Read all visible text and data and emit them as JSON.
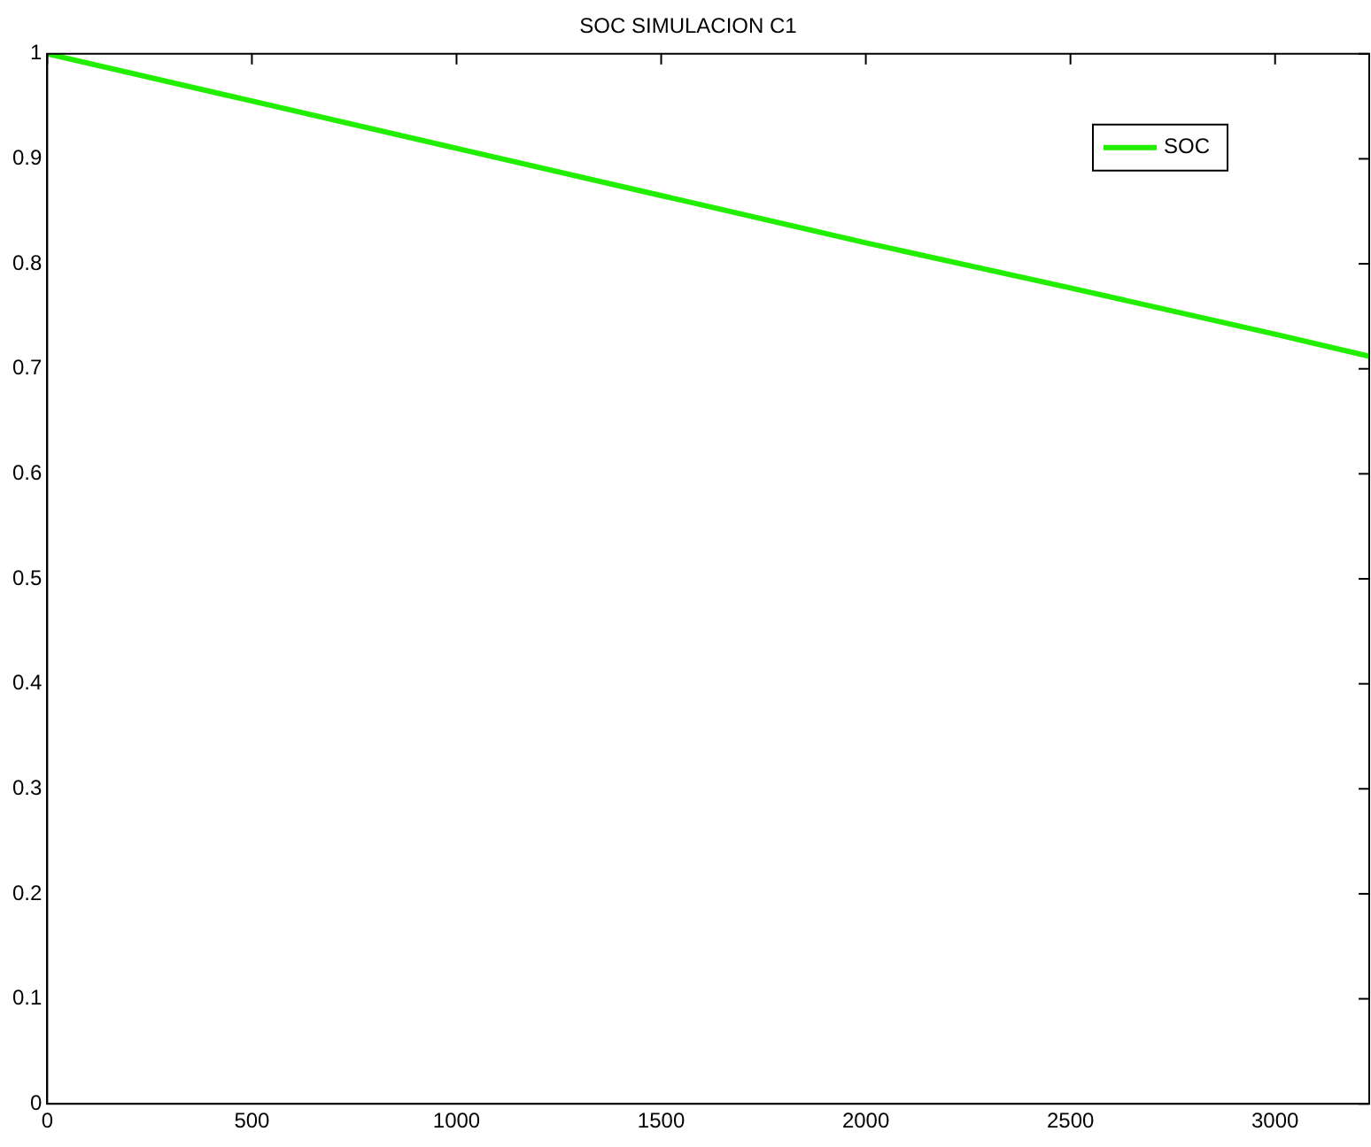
{
  "chart_data": {
    "type": "line",
    "title": "SOC SIMULACION C1",
    "x": [
      0,
      500,
      1000,
      1500,
      2000,
      2500,
      3000,
      3230
    ],
    "series": [
      {
        "name": "SOC",
        "color": "#22ee00",
        "values": [
          1.0,
          0.955,
          0.91,
          0.865,
          0.82,
          0.777,
          0.733,
          0.712
        ]
      }
    ],
    "xlim": [
      0,
      3230
    ],
    "xticks": [
      0,
      500,
      1000,
      1500,
      2000,
      2500,
      3000
    ],
    "ylim": [
      0,
      1
    ],
    "yticks": [
      0,
      0.1,
      0.2,
      0.3,
      0.4,
      0.5,
      0.6,
      0.7,
      0.8,
      0.9,
      1
    ],
    "grid": false,
    "legend": "top right",
    "marker": "none",
    "line_style": "solid"
  }
}
